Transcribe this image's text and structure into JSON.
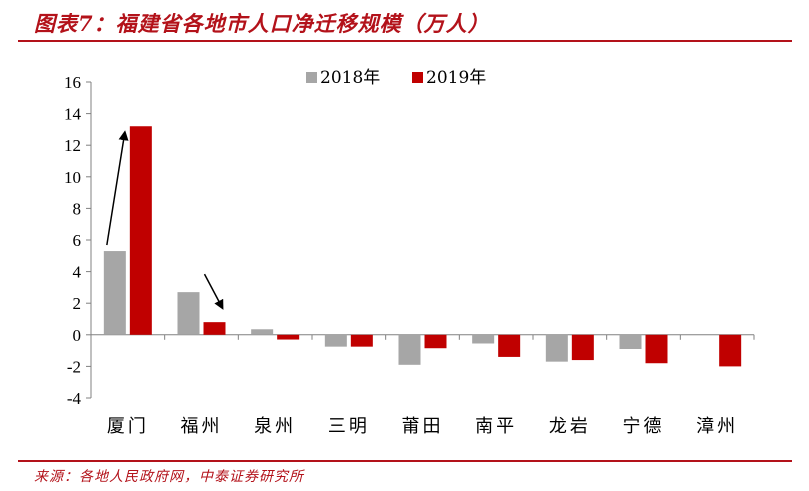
{
  "header": {
    "title": "图表7：福建省各地市人口净迁移规模（万人）"
  },
  "footer": {
    "source": "来源：各地人民政府网，中泰证券研究所"
  },
  "colors": {
    "accent": "#b3121a",
    "series_2018": "#a6a6a6",
    "series_2019": "#c00000",
    "axis": "#808080"
  },
  "chart_data": {
    "type": "bar",
    "title": "图表7：福建省各地市人口净迁移规模（万人）",
    "xlabel": "",
    "ylabel": "",
    "categories": [
      "厦门",
      "福州",
      "泉州",
      "三明",
      "莆田",
      "南平",
      "龙岩",
      "宁德",
      "漳州"
    ],
    "series": [
      {
        "name": "2018年",
        "values": [
          5.3,
          2.7,
          0.35,
          -0.75,
          -1.9,
          -0.55,
          -1.7,
          -0.9,
          0
        ]
      },
      {
        "name": "2019年",
        "values": [
          13.2,
          0.8,
          -0.3,
          -0.75,
          -0.85,
          -1.4,
          -1.6,
          -1.8,
          -2.0
        ]
      }
    ],
    "ylim": [
      -4,
      16
    ],
    "yticks": [
      -4,
      -2,
      0,
      2,
      4,
      6,
      8,
      10,
      12,
      14,
      16
    ],
    "grid": false,
    "legend": "top-center"
  }
}
